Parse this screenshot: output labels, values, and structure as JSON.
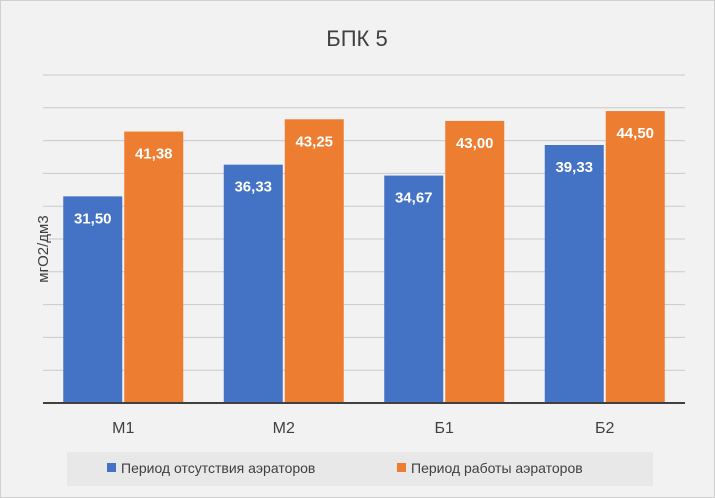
{
  "chart_data": {
    "type": "bar",
    "title": "БПК 5",
    "xlabel": "",
    "ylabel": "мгО2/дм3",
    "categories": [
      "М1",
      "М2",
      "Б1",
      "Б2"
    ],
    "series": [
      {
        "name": "Период отсутствия аэраторов",
        "values": [
          31.5,
          36.33,
          34.67,
          39.33
        ],
        "labels": [
          "31,50",
          "36,33",
          "34,67",
          "39,33"
        ],
        "color": "#4472c4"
      },
      {
        "name": "Период работы аэраторов",
        "values": [
          41.38,
          43.25,
          43.0,
          44.5
        ],
        "labels": [
          "41,38",
          "43,25",
          "43,00",
          "44,50"
        ],
        "color": "#ed7d31"
      }
    ],
    "ylim": [
      0,
      50
    ],
    "grid": true,
    "legend": "bottom"
  }
}
